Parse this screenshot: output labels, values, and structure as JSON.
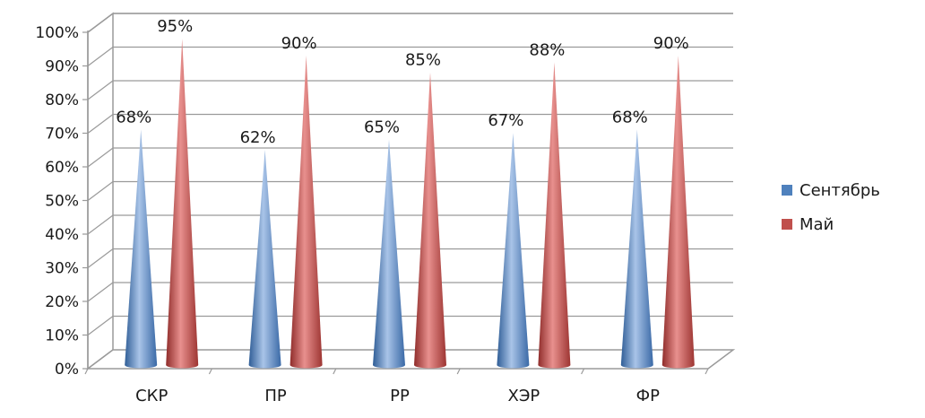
{
  "chart_data": {
    "type": "bar",
    "categories": [
      "СКР",
      "ПР",
      "РР",
      "ХЭР",
      "ФР"
    ],
    "series": [
      {
        "name": "Сентябрь",
        "color": "#4f81bd",
        "values": [
          68,
          62,
          65,
          67,
          68
        ],
        "labels": [
          "68%",
          "62%",
          "65%",
          "67%",
          "68%"
        ]
      },
      {
        "name": "Май",
        "color": "#c0504d",
        "values": [
          95,
          90,
          85,
          88,
          90
        ],
        "labels": [
          "95%",
          "90%",
          "85%",
          "88%",
          "90%"
        ]
      }
    ],
    "yticks": [
      "0%",
      "10%",
      "20%",
      "30%",
      "40%",
      "50%",
      "60%",
      "70%",
      "80%",
      "90%",
      "100%"
    ],
    "ylim": [
      0,
      100
    ],
    "grid": true,
    "legend": "right",
    "shape": "cone-3d"
  }
}
